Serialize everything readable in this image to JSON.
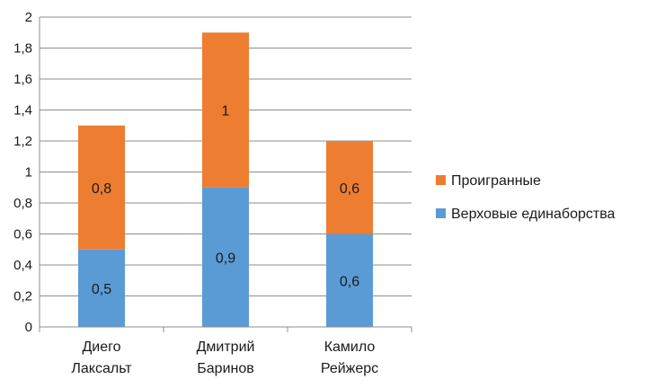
{
  "chart_data": {
    "type": "bar",
    "stacked": true,
    "categories": [
      [
        "Диего",
        "Лаксальт"
      ],
      [
        "Дмитрий",
        "Баринов"
      ],
      [
        "Камило",
        "Рейжерс"
      ]
    ],
    "series": [
      {
        "name": "Верховые единаборства",
        "values": [
          0.5,
          0.9,
          0.6
        ],
        "labels": [
          "0,5",
          "0,9",
          "0,6"
        ],
        "color": "#5b9bd5"
      },
      {
        "name": "Проигранные",
        "values": [
          0.8,
          1.0,
          0.6
        ],
        "labels": [
          "0,8",
          "1",
          "0,6"
        ],
        "color": "#ed7d31"
      }
    ],
    "ylim": [
      0,
      2
    ],
    "yticks": [
      "0",
      "0,2",
      "0,4",
      "0,6",
      "0,8",
      "1",
      "1,2",
      "1,4",
      "1,6",
      "1,8",
      "2"
    ],
    "grid": true,
    "legend": "right",
    "legend_order": [
      "Проигранные",
      "Верховые единаборства"
    ]
  }
}
